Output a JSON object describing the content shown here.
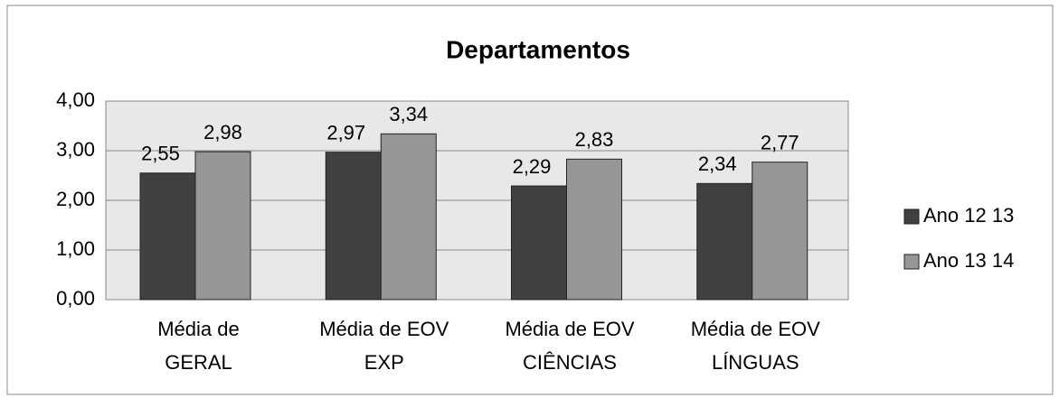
{
  "chart_data": {
    "type": "bar",
    "title": "Departamentos",
    "categories": [
      "Média de\nGERAL",
      "Média de EOV\nEXP",
      "Média de EOV\nCIÊNCIAS",
      "Média de EOV\nLÍNGUAS"
    ],
    "series": [
      {
        "name": "Ano 12 13",
        "color": "#404040",
        "values": [
          2.55,
          2.97,
          2.29,
          2.34
        ],
        "value_labels": [
          "2,55",
          "2,97",
          "2,29",
          "2,34"
        ]
      },
      {
        "name": "Ano 13 14",
        "color": "#969696",
        "values": [
          2.98,
          3.34,
          2.83,
          2.77
        ],
        "value_labels": [
          "2,98",
          "3,34",
          "2,83",
          "2,77"
        ]
      }
    ],
    "ylim": [
      0,
      4
    ],
    "yticks": [
      {
        "value": 0,
        "label": "0,00"
      },
      {
        "value": 1,
        "label": "1,00"
      },
      {
        "value": 2,
        "label": "2,00"
      },
      {
        "value": 3,
        "label": "3,00"
      },
      {
        "value": 4,
        "label": "4,00"
      }
    ],
    "grid": true,
    "legend": "right"
  }
}
